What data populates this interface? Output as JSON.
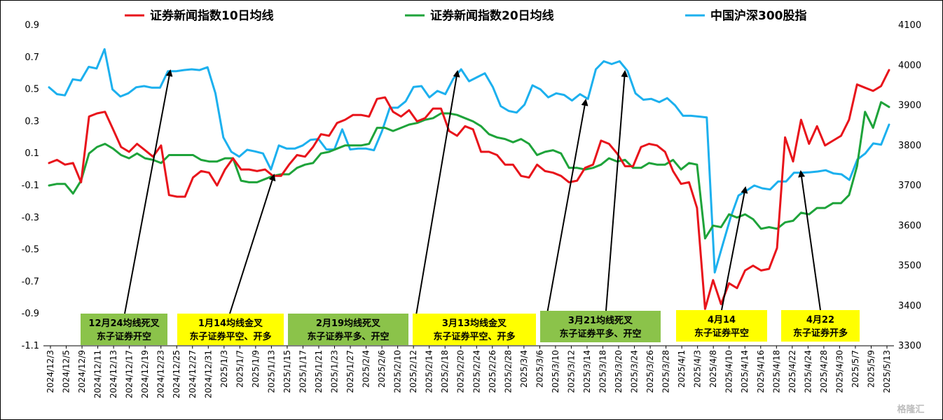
{
  "chart_data": {
    "type": "line",
    "title": "",
    "legend_position": "top",
    "grid": false,
    "left_axis": {
      "min": -1.1,
      "max": 0.9,
      "ticks": [
        "0.9",
        "0.7",
        "0.5",
        "0.3",
        "0.1",
        "-0.1",
        "-0.3",
        "-0.5",
        "-0.7",
        "-0.9",
        "-1.1"
      ]
    },
    "right_axis": {
      "min": 3300,
      "max": 4100,
      "ticks": [
        "4100",
        "4000",
        "3900",
        "3800",
        "3700",
        "3600",
        "3500",
        "3400",
        "3300"
      ]
    },
    "x_labels": [
      "2024/12/3",
      "2024/12/5",
      "2024/12/9",
      "2024/12/11",
      "2024/12/13",
      "2024/12/17",
      "2024/12/19",
      "2024/12/23",
      "2024/12/25",
      "2024/12/27",
      "2024/12/31",
      "2025/1/3",
      "2025/1/7",
      "2025/1/9",
      "2025/1/13",
      "2025/1/15",
      "2025/1/17",
      "2025/1/21",
      "2025/1/23",
      "2025/1/27",
      "2025/2/4",
      "2025/2/6",
      "2025/2/10",
      "2025/2/12",
      "2025/2/14",
      "2025/2/18",
      "2025/2/20",
      "2025/2/24",
      "2025/2/26",
      "2025/2/28",
      "2025/3/4",
      "2025/3/6",
      "2025/3/10",
      "2025/3/12",
      "2025/3/14",
      "2025/3/18",
      "2025/3/20",
      "2025/3/24",
      "2025/3/26",
      "2025/3/28",
      "2025/4/1",
      "2025/4/3",
      "2025/4/8",
      "2025/4/10",
      "2025/4/14",
      "2025/4/16",
      "2025/4/18",
      "2025/4/22",
      "2025/4/24",
      "2025/4/28",
      "2025/4/30",
      "2025/5/7",
      "2025/5/9",
      "2025/5/13"
    ],
    "series": [
      {
        "name": "证券新闻指数10日均线",
        "axis": "left",
        "color": "#e8141b",
        "values": [
          0.04,
          0.06,
          0.03,
          0.04,
          -0.08,
          0.33,
          0.35,
          0.36,
          0.25,
          0.14,
          0.11,
          0.16,
          0.12,
          0.08,
          0.15,
          -0.16,
          -0.17,
          -0.17,
          -0.05,
          -0.01,
          -0.02,
          -0.1,
          0.0,
          0.07,
          0.0,
          0.0,
          -0.01,
          0.0,
          -0.04,
          -0.04,
          0.03,
          0.09,
          0.08,
          0.14,
          0.22,
          0.21,
          0.29,
          0.31,
          0.34,
          0.34,
          0.33,
          0.44,
          0.45,
          0.36,
          0.33,
          0.37,
          0.3,
          0.32,
          0.38,
          0.38,
          0.24,
          0.21,
          0.27,
          0.25,
          0.11,
          0.11,
          0.09,
          0.03,
          0.03,
          -0.04,
          -0.05,
          0.03,
          -0.01,
          -0.02,
          -0.04,
          -0.08,
          -0.07,
          0.01,
          0.03,
          0.18,
          0.16,
          0.1,
          0.02,
          0.02,
          0.14,
          0.16,
          0.15,
          0.11,
          -0.01,
          -0.09,
          -0.08,
          -0.24,
          -0.87,
          -0.69,
          -0.84,
          -0.71,
          -0.74,
          -0.63,
          -0.6,
          -0.63,
          -0.62,
          -0.49,
          0.2,
          0.05,
          0.31,
          0.16,
          0.27,
          0.15,
          0.18,
          0.21,
          0.31,
          0.53,
          0.51,
          0.49,
          0.52,
          0.62
        ]
      },
      {
        "name": "证券新闻指数20日均线",
        "axis": "left",
        "color": "#1ea33a",
        "values": [
          -0.1,
          -0.09,
          -0.09,
          -0.15,
          -0.07,
          0.1,
          0.14,
          0.16,
          0.13,
          0.09,
          0.07,
          0.1,
          0.07,
          0.06,
          0.04,
          0.09,
          0.09,
          0.09,
          0.09,
          0.06,
          0.05,
          0.05,
          0.07,
          0.07,
          -0.07,
          -0.08,
          -0.08,
          -0.06,
          -0.04,
          -0.03,
          -0.03,
          0.01,
          0.03,
          0.04,
          0.1,
          0.11,
          0.13,
          0.15,
          0.15,
          0.15,
          0.16,
          0.26,
          0.26,
          0.24,
          0.26,
          0.28,
          0.29,
          0.31,
          0.32,
          0.35,
          0.35,
          0.34,
          0.32,
          0.3,
          0.27,
          0.22,
          0.2,
          0.19,
          0.17,
          0.19,
          0.16,
          0.09,
          0.11,
          0.12,
          0.1,
          0.01,
          0.01,
          0.0,
          0.01,
          0.03,
          0.07,
          0.05,
          0.06,
          0.01,
          0.01,
          0.04,
          0.03,
          0.03,
          0.06,
          0.0,
          0.04,
          0.03,
          -0.43,
          -0.35,
          -0.36,
          -0.28,
          -0.3,
          -0.28,
          -0.31,
          -0.37,
          -0.36,
          -0.37,
          -0.33,
          -0.32,
          -0.27,
          -0.28,
          -0.24,
          -0.24,
          -0.21,
          -0.21,
          -0.16,
          0.02,
          0.36,
          0.26,
          0.42,
          0.39
        ]
      },
      {
        "name": "中国沪深300股指",
        "axis": "right",
        "color": "#1cb0ee",
        "values": [
          3945,
          3928,
          3925,
          3965,
          3962,
          3996,
          3992,
          4040,
          3940,
          3922,
          3930,
          3945,
          3948,
          3944,
          3944,
          3985,
          3985,
          3988,
          3990,
          3988,
          3995,
          3930,
          3820,
          3784,
          3772,
          3789,
          3785,
          3780,
          3740,
          3800,
          3792,
          3792,
          3800,
          3814,
          3816,
          3790,
          3790,
          3840,
          3790,
          3792,
          3792,
          3788,
          3835,
          3894,
          3894,
          3910,
          3946,
          3948,
          3920,
          3936,
          3928,
          3966,
          3990,
          3960,
          3970,
          3980,
          3946,
          3898,
          3886,
          3882,
          3902,
          3950,
          3940,
          3920,
          3930,
          3926,
          3912,
          3928,
          3916,
          3990,
          4010,
          4003,
          4010,
          3986,
          3930,
          3914,
          3916,
          3908,
          3918,
          3900,
          3874,
          3874,
          3872,
          3870,
          3483,
          3552,
          3620,
          3675,
          3687,
          3700,
          3693,
          3690,
          3710,
          3710,
          3732,
          3732,
          3733,
          3735,
          3738,
          3730,
          3728,
          3714,
          3765,
          3780,
          3805,
          3802,
          3852
        ]
      }
    ],
    "annotations": [
      {
        "line1": "12月24均线死叉",
        "line2": "东子证券开空"
      },
      {
        "line1": "1月14均线金叉",
        "line2": "东子证券平空、开多"
      },
      {
        "line1": "2月19均线死叉",
        "line2": "东子证券平多、开空"
      },
      {
        "line1": "3月13均线金叉",
        "line2": "东子证券平空、开多"
      },
      {
        "line1": "3月21均线死叉",
        "line2": "东子证券平多、开空"
      },
      {
        "line1": "4月14",
        "line2": "东子证券平空"
      },
      {
        "line1": "4月22",
        "line2": "东子证券开多"
      }
    ]
  },
  "watermark": "格隆汇"
}
